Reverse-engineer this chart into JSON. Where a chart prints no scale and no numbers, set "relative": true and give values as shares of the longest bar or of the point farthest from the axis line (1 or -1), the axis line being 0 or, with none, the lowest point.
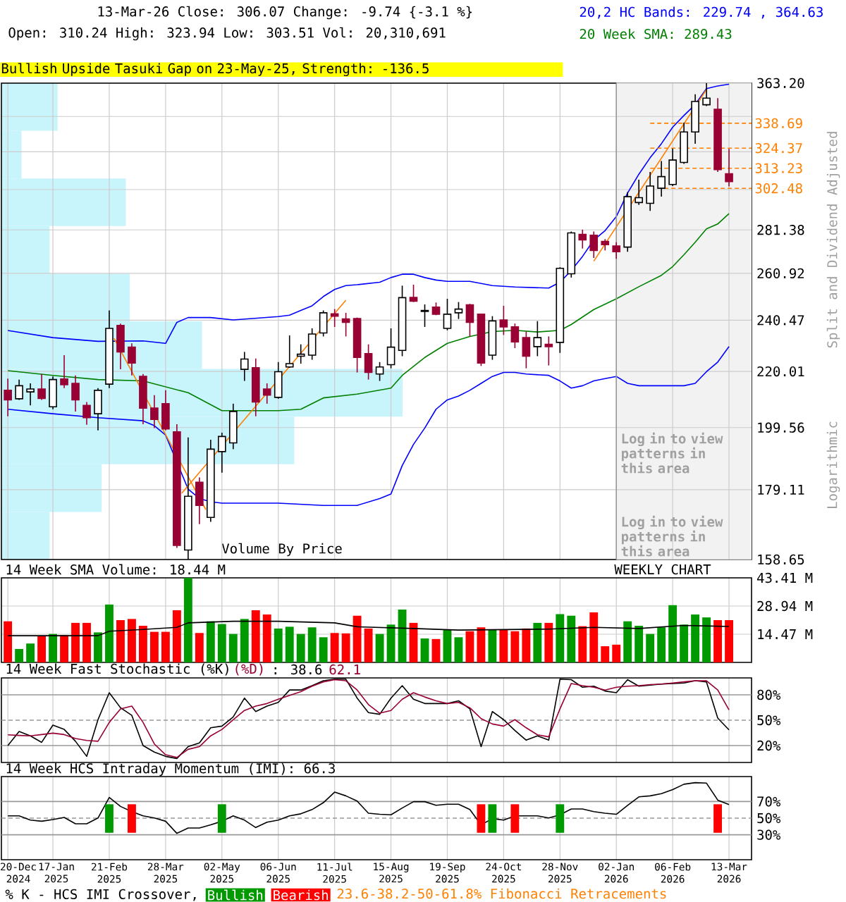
{
  "chart_data": [
    {
      "type": "candlestick",
      "title": "13-Mar-26 Close: 306.07 Change: -9.74 {-3.1 %}",
      "subtitle": "Open: 310.24 High: 323.94 Low: 303.51 Vol: 20,310,691",
      "ylabel": "Split and Dividend Adjusted",
      "annotations": [
        "Bullish Upside Tasuki Gap on 23-May-25, Strength: -136.5",
        "Logarithmic",
        "Log in to view patterns in this area",
        "23.6-38.2-50-61.8% Fibonacci Retracements"
      ],
      "x": [
        "2024-12-20",
        "2024-12-27",
        "2025-01-03",
        "2025-01-10",
        "2025-01-17",
        "2025-01-24",
        "2025-01-31",
        "2025-02-07",
        "2025-02-14",
        "2025-02-21",
        "2025-02-28",
        "2025-03-07",
        "2025-03-14",
        "2025-03-21",
        "2025-03-28",
        "2025-04-04",
        "2025-04-11",
        "2025-04-18",
        "2025-04-25",
        "2025-05-02",
        "2025-05-09",
        "2025-05-16",
        "2025-05-23",
        "2025-05-30",
        "2025-06-06",
        "2025-06-13",
        "2025-06-20",
        "2025-06-27",
        "2025-07-04",
        "2025-07-11",
        "2025-07-18",
        "2025-07-25",
        "2025-08-01",
        "2025-08-08",
        "2025-08-15",
        "2025-08-22",
        "2025-08-29",
        "2025-09-05",
        "2025-09-12",
        "2025-09-19",
        "2025-09-26",
        "2025-10-03",
        "2025-10-10",
        "2025-10-17",
        "2025-10-24",
        "2025-10-31",
        "2025-11-07",
        "2025-11-14",
        "2025-11-21",
        "2025-11-28",
        "2025-12-05",
        "2025-12-12",
        "2025-12-19",
        "2025-12-26",
        "2026-01-02",
        "2026-01-09",
        "2026-01-16",
        "2026-01-23",
        "2026-01-30",
        "2026-02-06",
        "2026-02-13",
        "2026-02-20",
        "2026-02-27",
        "2026-03-06",
        "2026-03-13"
      ],
      "ohlc": [
        [
          212.9,
          217.3,
          203.5,
          209.4
        ],
        [
          209.8,
          216.9,
          209.4,
          214.6
        ],
        [
          212.3,
          215.5,
          207.4,
          213.4
        ],
        [
          213.4,
          219.0,
          209.4,
          209.9
        ],
        [
          206.9,
          218.1,
          206.0,
          216.9
        ],
        [
          217.1,
          226.3,
          213.7,
          215.0
        ],
        [
          215.5,
          218.5,
          205.2,
          209.4
        ],
        [
          207.4,
          208.6,
          200.5,
          203.0
        ],
        [
          204.4,
          213.7,
          198.6,
          212.9
        ],
        [
          215.2,
          244.6,
          213.7,
          237.1
        ],
        [
          238.3,
          239.1,
          220.8,
          227.6
        ],
        [
          229.5,
          231.0,
          218.5,
          223.2
        ],
        [
          218.1,
          219.0,
          200.7,
          206.4
        ],
        [
          206.4,
          211.1,
          199.4,
          202.4
        ],
        [
          208.0,
          212.9,
          198.6,
          199.1
        ],
        [
          198.1,
          200.7,
          161.9,
          162.6
        ],
        [
          161.3,
          196.2,
          158.65,
          177.1
        ],
        [
          181.5,
          183.0,
          168.7,
          174.3
        ],
        [
          170.7,
          195.4,
          169.4,
          192.2
        ],
        [
          191.4,
          197.8,
          184.5,
          196.5
        ],
        [
          194.3,
          208.0,
          192.2,
          205.2
        ],
        [
          220.8,
          227.6,
          216.4,
          224.8
        ],
        [
          221.4,
          225.0,
          203.5,
          208.6
        ],
        [
          213.4,
          215.5,
          208.0,
          211.1
        ],
        [
          210.3,
          223.6,
          209.8,
          219.9
        ],
        [
          221.7,
          234.2,
          221.4,
          223.0
        ],
        [
          225.9,
          230.6,
          223.0,
          226.7
        ],
        [
          226.3,
          237.1,
          224.5,
          234.8
        ],
        [
          235.2,
          244.6,
          233.8,
          243.6
        ],
        [
          243.2,
          245.2,
          237.7,
          242.2
        ],
        [
          241.0,
          243.6,
          233.8,
          239.6
        ],
        [
          241.2,
          241.6,
          219.6,
          225.4
        ],
        [
          226.9,
          230.6,
          216.9,
          219.6
        ],
        [
          219.0,
          223.6,
          216.4,
          221.7
        ],
        [
          222.6,
          237.1,
          221.2,
          229.5
        ],
        [
          228.2,
          255.4,
          225.9,
          250.1
        ],
        [
          250.2,
          255.8,
          248.2,
          248.6
        ],
        [
          244.2,
          247.2,
          237.7,
          244.6
        ],
        [
          246.0,
          248.0,
          242.6,
          243.0
        ],
        [
          237.1,
          249.6,
          236.3,
          243.0
        ],
        [
          243.6,
          248.2,
          241.0,
          245.2
        ],
        [
          247.0,
          247.4,
          233.8,
          239.6
        ],
        [
          243.0,
          243.3,
          222.1,
          223.2
        ],
        [
          226.3,
          242.2,
          224.5,
          240.2
        ],
        [
          240.6,
          246.6,
          234.4,
          237.7
        ],
        [
          237.7,
          239.1,
          229.1,
          231.6
        ],
        [
          233.3,
          235.8,
          221.2,
          225.9
        ],
        [
          229.7,
          240.1,
          225.9,
          233.3
        ],
        [
          230.6,
          233.8,
          222.3,
          229.7
        ],
        [
          231.4,
          263.7,
          227.2,
          263.2
        ],
        [
          260.7,
          280.6,
          259.0,
          279.9
        ],
        [
          279.2,
          281.5,
          272.4,
          276.5
        ],
        [
          278.8,
          280.6,
          268.0,
          271.5
        ],
        [
          275.8,
          276.9,
          271.5,
          274.2
        ],
        [
          273.6,
          275.4,
          267.6,
          270.9
        ],
        [
          273.1,
          300.5,
          270.9,
          298.1
        ],
        [
          295.1,
          307.0,
          293.9,
          297.6
        ],
        [
          294.7,
          311.2,
          290.8,
          303.7
        ],
        [
          302.5,
          317.2,
          298.1,
          308.7
        ],
        [
          304.5,
          324.2,
          303.7,
          317.7
        ],
        [
          316.4,
          339.1,
          315.6,
          333.6
        ],
        [
          333.6,
          356.2,
          326.9,
          351.8
        ],
        [
          349.8,
          363.2,
          349.0,
          353.8
        ],
        [
          347.0,
          353.8,
          311.2,
          312.5
        ],
        [
          310.24,
          323.94,
          303.51,
          306.07
        ]
      ],
      "series": [
        {
          "type": "line",
          "color": "#0000ff",
          "x": [
            "2024-12-20",
            "2025-01-17",
            "2025-02-14",
            "2025-03-14",
            "2025-03-28",
            "2025-04-04",
            "2025-04-11",
            "2025-04-25",
            "2025-05-09",
            "2025-06-06",
            "2025-06-13",
            "2025-06-20",
            "2025-06-27",
            "2025-07-04",
            "2025-07-11",
            "2025-07-18",
            "2025-07-25",
            "2025-08-08",
            "2025-08-15",
            "2025-08-22",
            "2025-08-29",
            "2025-09-05",
            "2025-09-12",
            "2025-09-19",
            "2025-10-03",
            "2025-10-17",
            "2025-10-31",
            "2025-11-21",
            "2025-11-28",
            "2025-12-05",
            "2025-12-12",
            "2025-12-19",
            "2025-12-26",
            "2026-01-02",
            "2026-01-09",
            "2026-01-16",
            "2026-01-23",
            "2026-01-30",
            "2026-02-06",
            "2026-02-13",
            "2026-02-20",
            "2026-02-27",
            "2026-03-06",
            "2026-03-13"
          ],
          "values": [
            236.2,
            233.3,
            231.8,
            232.0,
            231.0,
            239.6,
            241.6,
            241.6,
            240.6,
            242.0,
            242.6,
            244.6,
            246.6,
            250.6,
            253.7,
            255.4,
            255.8,
            256.9,
            259.0,
            260.5,
            260.5,
            259.0,
            257.9,
            257.3,
            257.3,
            255.4,
            254.8,
            254.3,
            256.9,
            262.2,
            268.7,
            276.5,
            281.0,
            288.0,
            300.0,
            310.0,
            319.0,
            326.9,
            336.4,
            343.3,
            349.9,
            359.7,
            361.4,
            362.5
          ]
        },
        {
          "type": "line",
          "name": "20,2 HC Bands: 229.74 , 364.63",
          "color": "#0000ff",
          "x": [
            "2024-12-20",
            "2025-01-17",
            "2025-02-14",
            "2025-03-14",
            "2025-03-21",
            "2025-03-28",
            "2025-04-04",
            "2025-04-11",
            "2025-04-18",
            "2025-04-25",
            "2025-05-02",
            "2025-06-06",
            "2025-07-04",
            "2025-07-25",
            "2025-08-08",
            "2025-08-15",
            "2025-08-22",
            "2025-08-29",
            "2025-09-05",
            "2025-09-12",
            "2025-09-19",
            "2025-09-26",
            "2025-10-03",
            "2025-10-10",
            "2025-10-17",
            "2025-10-24",
            "2025-10-31",
            "2025-11-07",
            "2025-11-21",
            "2025-11-28",
            "2025-12-05",
            "2025-12-12",
            "2025-12-19",
            "2025-12-26",
            "2026-01-02",
            "2026-01-09",
            "2026-01-16",
            "2026-01-30",
            "2026-02-13",
            "2026-02-20",
            "2026-02-27",
            "2026-03-06",
            "2026-03-13"
          ],
          "values": [
            206.0,
            204.4,
            203.0,
            201.9,
            200.2,
            197.0,
            null,
            179.3,
            176.4,
            175.4,
            175.0,
            175.0,
            174.3,
            174.3,
            176.4,
            177.8,
            186.8,
            193.8,
            199.4,
            206.0,
            209.4,
            210.8,
            212.9,
            215.5,
            218.1,
            219.6,
            219.6,
            219.0,
            218.5,
            216.4,
            213.7,
            214.6,
            216.4,
            217.3,
            218.1,
            215.5,
            214.6,
            214.6,
            214.6,
            215.5,
            219.9,
            223.6,
            229.74
          ]
        },
        {
          "type": "line",
          "name": "20 Week SMA: 289.43",
          "color": "#008000",
          "x": [
            "2024-12-20",
            "2025-01-17",
            "2025-02-14",
            "2025-03-14",
            "2025-04-11",
            "2025-05-02",
            "2025-06-06",
            "2025-06-20",
            "2025-07-04",
            "2025-07-25",
            "2025-08-15",
            "2025-08-22",
            "2025-09-05",
            "2025-09-19",
            "2025-10-03",
            "2025-10-17",
            "2025-10-31",
            "2025-11-14",
            "2025-11-28",
            "2025-12-05",
            "2025-12-19",
            "2026-01-02",
            "2026-01-16",
            "2026-01-30",
            "2026-02-06",
            "2026-02-13",
            "2026-02-20",
            "2026-02-27",
            "2026-03-06",
            "2026-03-13"
          ],
          "values": [
            220.3,
            218.5,
            216.9,
            216.4,
            212.0,
            205.5,
            205.5,
            206.0,
            210.1,
            211.5,
            213.7,
            218.5,
            225.4,
            231.0,
            233.8,
            235.8,
            236.3,
            235.6,
            236.3,
            238.7,
            245.0,
            249.6,
            254.9,
            260.0,
            264.0,
            269.5,
            275.4,
            281.9,
            284.3,
            289.43
          ]
        },
        {
          "type": "line",
          "color": "#ff8000",
          "x": [
            "2025-02-24",
            "2025-04-22"
          ],
          "values": [
            233.0,
            173.0
          ]
        },
        {
          "type": "line",
          "color": "#ff8000",
          "x": [
            "2025-04-07",
            "2025-07-18"
          ],
          "values": [
            178.0,
            249.0
          ]
        },
        {
          "type": "line",
          "color": "#ff8000",
          "x": [
            "2025-12-19",
            "2026-02-27"
          ],
          "values": [
            266.5,
            359.2
          ]
        }
      ],
      "xlim": [
        "2024-12-16",
        "2026-03-27"
      ],
      "ylim": [
        158.65,
        363.2
      ],
      "log": true,
      "grid": true,
      "tick_labels": "y",
      "xticks": [
        {
          "value": "2024-12-20",
          "label": null
        },
        {
          "value": "2025-01-17",
          "label": null
        },
        {
          "value": "2025-02-21",
          "label": null
        },
        {
          "value": "2025-03-28",
          "label": null
        },
        {
          "value": "2025-05-02",
          "label": null
        },
        {
          "value": "2025-06-06",
          "label": null
        },
        {
          "value": "2025-07-11",
          "label": null
        },
        {
          "value": "2025-08-15",
          "label": null
        },
        {
          "value": "2025-09-19",
          "label": null
        },
        {
          "value": "2025-10-24",
          "label": null
        },
        {
          "value": "2025-11-28",
          "label": null
        },
        {
          "value": "2026-01-02",
          "label": null
        },
        {
          "value": "2026-02-06",
          "label": null
        },
        {
          "value": "2026-03-13",
          "label": null
        }
      ],
      "yticks": [
        158.65,
        179.11,
        199.56,
        220.01,
        240.47,
        260.92,
        281.38,
        {
          "value": 301.83,
          "label": null
        },
        {
          "value": 322.29,
          "label": null
        },
        {
          "value": 342.74,
          "label": null
        },
        {
          "value": 363.2,
          "label": "363.20"
        }
      ],
      "bands": [
        {
          "axis": "x",
          "from": "2026-01-02",
          "to": "2026-03-27",
          "label": "Log in to view patterns in this area",
          "color": "#f2f2f2"
        }
      ],
      "ref_lines": [
        {
          "axis": "x",
          "value": "2026-01-02",
          "color": "#999999"
        },
        {
          "axis": "y",
          "value": 338.69,
          "label": "338.69",
          "color": "#ff8000",
          "line_style": "dashed"
        },
        {
          "axis": "y",
          "value": 324.37,
          "label": "324.37",
          "color": "#ff8000",
          "line_style": "dashed"
        },
        {
          "axis": "y",
          "value": 313.23,
          "label": "313.23",
          "color": "#ff8000",
          "line_style": "dashed"
        },
        {
          "axis": "y",
          "value": 302.48,
          "label": "302.48",
          "color": "#ff8000",
          "line_style": "dashed"
        }
      ]
    },
    {
      "type": "bar",
      "title": "Volume By Price",
      "orientation": "horizontal",
      "relative": true,
      "tick_labels": false,
      "color": "#c8f4fc",
      "categories": [
        null,
        null,
        null,
        null,
        null,
        null,
        null,
        null,
        null,
        null
      ],
      "values": [
        0.14,
        0.05,
        0.31,
        0.12,
        0.32,
        0.5,
        1,
        0.73,
        0.25,
        0.12
      ]
    },
    {
      "type": "bar",
      "title": "14 Week SMA Volume: 18.44 M",
      "annotations": [
        "WEEKLY CHART"
      ],
      "x": [
        "2024-12-20",
        "2024-12-27",
        "2025-01-03",
        "2025-01-10",
        "2025-01-17",
        "2025-01-24",
        "2025-01-31",
        "2025-02-07",
        "2025-02-14",
        "2025-02-21",
        "2025-02-28",
        "2025-03-07",
        "2025-03-14",
        "2025-03-21",
        "2025-03-28",
        "2025-04-04",
        "2025-04-11",
        "2025-04-18",
        "2025-04-25",
        "2025-05-02",
        "2025-05-09",
        "2025-05-16",
        "2025-05-23",
        "2025-05-30",
        "2025-06-06",
        "2025-06-13",
        "2025-06-20",
        "2025-06-27",
        "2025-07-04",
        "2025-07-11",
        "2025-07-18",
        "2025-07-25",
        "2025-08-01",
        "2025-08-08",
        "2025-08-15",
        "2025-08-22",
        "2025-08-29",
        "2025-09-05",
        "2025-09-12",
        "2025-09-19",
        "2025-09-26",
        "2025-10-03",
        "2025-10-10",
        "2025-10-17",
        "2025-10-24",
        "2025-10-31",
        "2025-11-07",
        "2025-11-14",
        "2025-11-21",
        "2025-11-28",
        "2025-12-05",
        "2025-12-12",
        "2025-12-19",
        "2025-12-26",
        "2026-01-02",
        "2026-01-09",
        "2026-01-16",
        "2026-01-23",
        "2026-01-30",
        "2026-02-06",
        "2026-02-13",
        "2026-02-20",
        "2026-02-27",
        "2026-03-06",
        "2026-03-13"
      ],
      "series": [
        {
          "type": "bar",
          "values": [
            21.1,
            6.9,
            9.7,
            13.7,
            14.6,
            14.0,
            20.3,
            20.3,
            15.4,
            29.7,
            21.7,
            22.3,
            18.8,
            15.7,
            15.7,
            26.8,
            43.41,
            15.1,
            21.1,
            19.7,
            14.6,
            22.3,
            26.8,
            24.6,
            17.4,
            18.3,
            14.6,
            18.0,
            12.9,
            15.1,
            14.9,
            24.0,
            17.4,
            14.6,
            19.4,
            27.1,
            20.3,
            12.3,
            12.0,
            16.9,
            12.9,
            16.0,
            18.0,
            16.9,
            16.9,
            16.0,
            17.4,
            20.3,
            20.3,
            24.8,
            24.0,
            18.6,
            25.7,
            8.3,
            9.1,
            21.1,
            18.8,
            14.6,
            18.0,
            29.4,
            19.4,
            24.6,
            23.1,
            21.7,
            21.7
          ],
          "colors": [
            "#ff0000",
            "#009900",
            "#009900",
            "#ff0000",
            "#009900",
            "#ff0000",
            "#ff0000",
            "#ff0000",
            "#009900",
            "#009900",
            "#ff0000",
            "#ff0000",
            "#ff0000",
            "#ff0000",
            "#ff0000",
            "#ff0000",
            "#009900",
            "#ff0000",
            "#009900",
            "#009900",
            "#009900",
            "#009900",
            "#ff0000",
            "#ff0000",
            "#009900",
            "#009900",
            "#009900",
            "#009900",
            "#009900",
            "#ff0000",
            "#ff0000",
            "#ff0000",
            "#ff0000",
            "#009900",
            "#009900",
            "#009900",
            "#ff0000",
            "#009900",
            "#ff0000",
            "#009900",
            "#009900",
            "#ff0000",
            "#ff0000",
            "#009900",
            "#ff0000",
            "#ff0000",
            "#ff0000",
            "#009900",
            "#ff0000",
            "#009900",
            "#009900",
            "#ff0000",
            "#ff0000",
            "#ff0000",
            "#ff0000",
            "#009900",
            "#009900",
            "#009900",
            "#009900",
            "#009900",
            "#009900",
            "#009900",
            "#009900",
            "#ff0000",
            "#ff0000"
          ]
        },
        {
          "type": "line",
          "color": "#000000",
          "x": [
            "2024-12-20",
            "2025-02-14",
            "2025-02-21",
            "2025-03-14",
            "2025-04-04",
            "2025-04-11",
            "2025-05-09",
            "2025-06-06",
            "2025-07-11",
            "2025-07-25",
            "2025-08-29",
            "2025-09-26",
            "2025-11-21",
            "2025-12-19",
            "2026-01-16",
            "2026-02-13",
            "2026-03-13"
          ],
          "values": [
            13.7,
            13.7,
            16.0,
            16.9,
            18.0,
            20.3,
            21.1,
            21.1,
            20.3,
            18.3,
            17.4,
            16.6,
            17.1,
            18.0,
            17.4,
            19.0,
            18.44
          ]
        }
      ],
      "xlim": [
        "2024-12-16",
        "2026-03-27"
      ],
      "ylim": [
        0,
        43.41
      ],
      "grid": true,
      "tick_labels": "y",
      "xticks": [
        {
          "value": "2024-12-20",
          "label": null
        },
        {
          "value": "2025-01-17",
          "label": null
        },
        {
          "value": "2025-02-21",
          "label": null
        },
        {
          "value": "2025-03-28",
          "label": null
        },
        {
          "value": "2025-05-02",
          "label": null
        },
        {
          "value": "2025-06-06",
          "label": null
        },
        {
          "value": "2025-07-11",
          "label": null
        },
        {
          "value": "2025-08-15",
          "label": null
        },
        {
          "value": "2025-09-19",
          "label": null
        },
        {
          "value": "2025-10-24",
          "label": null
        },
        {
          "value": "2025-11-28",
          "label": null
        },
        {
          "value": "2026-01-02",
          "label": null
        },
        {
          "value": "2026-02-06",
          "label": null
        },
        {
          "value": "2026-03-13",
          "label": null
        }
      ],
      "yticks": [
        {
          "value": 14.47,
          "label": "14.47 M"
        },
        {
          "value": 28.94,
          "label": "28.94 M"
        },
        {
          "value": 43.41,
          "label": "43.41 M"
        }
      ]
    },
    {
      "type": "line",
      "title": "14 Week Fast Stochastic (%K)",
      "annotations": [
        ": 38.6",
        "62.1"
      ],
      "x": [
        "2024-12-20",
        "2024-12-27",
        "2025-01-03",
        "2025-01-10",
        "2025-01-17",
        "2025-01-24",
        "2025-01-31",
        "2025-02-07",
        "2025-02-14",
        "2025-02-21",
        "2025-02-28",
        "2025-03-07",
        "2025-03-14",
        "2025-03-21",
        "2025-03-28",
        "2025-04-04",
        "2025-04-11",
        "2025-04-18",
        "2025-04-25",
        "2025-05-02",
        "2025-05-09",
        "2025-05-16",
        "2025-05-23",
        "2025-05-30",
        "2025-06-06",
        "2025-06-13",
        "2025-06-20",
        "2025-06-27",
        "2025-07-04",
        "2025-07-11",
        "2025-07-18",
        "2025-07-25",
        "2025-08-01",
        "2025-08-08",
        "2025-08-15",
        "2025-08-22",
        "2025-08-29",
        "2025-09-05",
        "2025-09-12",
        "2025-09-19",
        "2025-09-26",
        "2025-10-03",
        "2025-10-10",
        "2025-10-17",
        "2025-10-24",
        "2025-10-31",
        "2025-11-07",
        "2025-11-14",
        "2025-11-21",
        "2025-11-28",
        "2025-12-05",
        "2025-12-12",
        "2025-12-19",
        "2025-12-26",
        "2026-01-02",
        "2026-01-09",
        "2026-01-16",
        "2026-01-23",
        "2026-01-30",
        "2026-02-06",
        "2026-02-13",
        "2026-02-20",
        "2026-02-27",
        "2026-03-06",
        "2026-03-13"
      ],
      "series": [
        {
          "color": "#000000",
          "values": [
            20.0,
            36.6,
            31.5,
            23.8,
            44.2,
            39.1,
            25.1,
            7.2,
            50.6,
            82.5,
            64.7,
            55.7,
            20.0,
            12.3,
            7.2,
            4.7,
            18.7,
            23.2,
            41.0,
            43.0,
            53.8,
            76.1,
            60.2,
            66.6,
            71.0,
            85.7,
            85.7,
            90.8,
            96.6,
            98.5,
            98.5,
            76.1,
            59.0,
            57.0,
            76.1,
            90.8,
            74.8,
            69.7,
            69.7,
            69.7,
            72.9,
            63.4,
            18.7,
            60.2,
            50.6,
            37.8,
            26.4,
            31.5,
            26.4,
            98.5,
            97.9,
            88.9,
            90.2,
            84.5,
            82.5,
            97.9,
            90.2,
            91.5,
            92.7,
            93.4,
            94.0,
            96.6,
            95.3,
            52.5,
            38.6
          ]
        },
        {
          "name": "(%D)",
          "color": "#990033",
          "values": [
            32.7,
            32.0,
            31.5,
            33.0,
            34.7,
            33.0,
            28.3,
            26.0,
            25.1,
            47.4,
            63.4,
            66.6,
            47.4,
            21.9,
            9.1,
            6.0,
            15.5,
            18.7,
            31.5,
            39.1,
            50.6,
            61.5,
            66.6,
            69.7,
            74.8,
            79.3,
            83.8,
            90.2,
            95.3,
            97.9,
            96.6,
            85.7,
            68.5,
            58.3,
            61.5,
            74.8,
            82.5,
            77.4,
            72.9,
            69.7,
            71.0,
            64.7,
            51.9,
            45.5,
            43.0,
            50.6,
            41.0,
            32.7,
            30.3,
            63.4,
            93.4,
            90.8,
            88.9,
            85.7,
            88.9,
            90.2,
            90.8,
            92.1,
            92.7,
            94.0,
            95.3,
            96.6,
            96.6,
            85.7,
            62.1
          ]
        }
      ],
      "xlim": [
        "2024-12-16",
        "2026-03-27"
      ],
      "ylim": [
        0,
        100
      ],
      "grid": "x",
      "tick_labels": "y",
      "xticks": [
        {
          "value": "2024-12-20",
          "label": null
        },
        {
          "value": "2025-01-17",
          "label": null
        },
        {
          "value": "2025-02-21",
          "label": null
        },
        {
          "value": "2025-03-28",
          "label": null
        },
        {
          "value": "2025-05-02",
          "label": null
        },
        {
          "value": "2025-06-06",
          "label": null
        },
        {
          "value": "2025-07-11",
          "label": null
        },
        {
          "value": "2025-08-15",
          "label": null
        },
        {
          "value": "2025-09-19",
          "label": null
        },
        {
          "value": "2025-10-24",
          "label": null
        },
        {
          "value": "2025-11-28",
          "label": null
        },
        {
          "value": "2026-01-02",
          "label": null
        },
        {
          "value": "2026-02-06",
          "label": null
        },
        {
          "value": "2026-03-13",
          "label": null
        }
      ],
      "yticks": [
        {
          "value": 20,
          "label": "20%"
        },
        {
          "value": 50,
          "label": "50%"
        },
        {
          "value": 80,
          "label": "80%"
        }
      ],
      "ref_lines": [
        {
          "axis": "y",
          "value": 20,
          "color": "#999999"
        },
        {
          "axis": "y",
          "value": 80,
          "color": "#999999"
        },
        {
          "axis": "y",
          "value": 50,
          "color": "#999999",
          "line_style": "dashed"
        }
      ]
    },
    {
      "type": "line",
      "title": "14 Week HCS Intraday Momentum (IMI): 66.3",
      "legend": "bottom",
      "legend_title": "% K - HCS IMI Crossover,",
      "x": [
        "2024-12-20",
        "2024-12-27",
        "2025-01-03",
        "2025-01-10",
        "2025-01-17",
        "2025-01-24",
        "2025-01-31",
        "2025-02-07",
        "2025-02-14",
        "2025-02-21",
        "2025-02-28",
        "2025-03-07",
        "2025-03-14",
        "2025-03-21",
        "2025-03-28",
        "2025-04-04",
        "2025-04-11",
        "2025-04-18",
        "2025-04-25",
        "2025-05-02",
        "2025-05-09",
        "2025-05-16",
        "2025-05-23",
        "2025-05-30",
        "2025-06-06",
        "2025-06-13",
        "2025-06-20",
        "2025-06-27",
        "2025-07-04",
        "2025-07-11",
        "2025-07-18",
        "2025-07-25",
        "2025-08-01",
        "2025-08-08",
        "2025-08-15",
        "2025-08-22",
        "2025-08-29",
        "2025-09-05",
        "2025-09-12",
        "2025-09-19",
        "2025-09-26",
        "2025-10-03",
        "2025-10-10",
        "2025-10-17",
        "2025-10-24",
        "2025-10-31",
        "2025-11-07",
        "2025-11-14",
        "2025-11-21",
        "2025-11-28",
        "2025-12-05",
        "2025-12-12",
        "2025-12-19",
        "2025-12-26",
        "2026-01-02",
        "2026-01-09",
        "2026-01-16",
        "2026-01-23",
        "2026-01-30",
        "2026-02-06",
        "2026-02-13",
        "2026-02-20",
        "2026-02-27",
        "2026-03-06",
        "2026-03-13"
      ],
      "series": [
        {
          "type": "line",
          "color": "#000000",
          "values": [
            52.7,
            52.7,
            47.6,
            46.3,
            48.3,
            50.8,
            43.2,
            43.2,
            50.2,
            74.9,
            64.1,
            57.8,
            52.7,
            50.2,
            46.3,
            31.7,
            38.1,
            38.1,
            41.9,
            46.3,
            52.7,
            47.6,
            38.7,
            45.1,
            47.6,
            52.7,
            55.2,
            60.3,
            68.6,
            81.3,
            76.8,
            70.5,
            55.9,
            54.6,
            54.0,
            62.2,
            69.8,
            69.8,
            65.4,
            66.7,
            66.7,
            60.3,
            41.9,
            49.5,
            47.6,
            52.7,
            52.7,
            52.7,
            50.2,
            54.0,
            61.0,
            61.0,
            57.8,
            55.9,
            54.6,
            65.4,
            75.6,
            76.8,
            79.4,
            84.4,
            90.8,
            92.7,
            92.1,
            71.7,
            66.3
          ]
        },
        {
          "type": "bar",
          "name": "Bullish",
          "color": "#009900",
          "x": [
            "2025-02-21",
            "2025-05-02",
            "2025-10-17",
            "2025-11-28"
          ],
          "base": [
            32.4,
            32.4,
            32.4,
            32.4
          ],
          "values": [
            34.3,
            34.3,
            34.3,
            34.3
          ]
        },
        {
          "type": "bar",
          "name": "Bearish",
          "color": "#ff0000",
          "x": [
            "2025-03-07",
            "2025-10-10",
            "2025-10-31",
            "2026-03-06"
          ],
          "base": [
            32.4,
            32.4,
            32.4,
            32.4
          ],
          "values": [
            34.3,
            34.3,
            34.3,
            34.3
          ]
        }
      ],
      "xlim": [
        "2024-12-16",
        "2026-03-27"
      ],
      "ylim": [
        0,
        100
      ],
      "grid": "x",
      "xticks": [
        {
          "value": "2024-12-20",
          "label": "20-Dec 2024"
        },
        {
          "value": "2025-01-17",
          "label": "17-Jan 2025"
        },
        {
          "value": "2025-02-21",
          "label": "21-Feb 2025"
        },
        {
          "value": "2025-03-28",
          "label": "28-Mar 2025"
        },
        {
          "value": "2025-05-02",
          "label": "02-May 2025"
        },
        {
          "value": "2025-06-06",
          "label": "06-Jun 2025"
        },
        {
          "value": "2025-07-11",
          "label": "11-Jul 2025"
        },
        {
          "value": "2025-08-15",
          "label": "15-Aug 2025"
        },
        {
          "value": "2025-09-19",
          "label": "19-Sep 2025"
        },
        {
          "value": "2025-10-24",
          "label": "24-Oct 2025"
        },
        {
          "value": "2025-11-28",
          "label": "28-Nov 2025"
        },
        {
          "value": "2026-01-02",
          "label": "02-Jan 2026"
        },
        {
          "value": "2026-02-06",
          "label": "06-Feb 2026"
        },
        {
          "value": "2026-03-13",
          "label": "13-Mar 2026"
        }
      ],
      "yticks": [
        {
          "value": 30,
          "label": "30%"
        },
        {
          "value": 50,
          "label": "50%"
        },
        {
          "value": 70,
          "label": "70%"
        }
      ],
      "ref_lines": [
        {
          "axis": "y",
          "value": 30,
          "color": "#999999"
        },
        {
          "axis": "y",
          "value": 70,
          "color": "#999999"
        },
        {
          "axis": "y",
          "value": 50,
          "color": "#999999",
          "line_style": "dashed"
        }
      ]
    }
  ]
}
